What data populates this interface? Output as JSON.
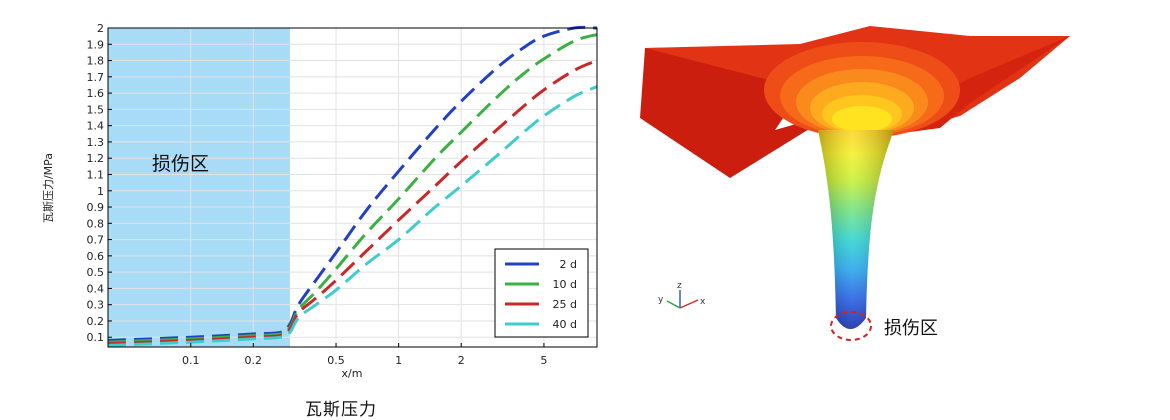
{
  "chart_data": {
    "type": "line",
    "title": "",
    "xlabel": "x/m",
    "ylabel": "瓦斯压力/MPa",
    "xscale": "log",
    "xlim": [
      0.04,
      9.0
    ],
    "ylim": [
      0.04,
      2.0
    ],
    "x_ticks": [
      0.1,
      0.2,
      0.5,
      1,
      2,
      5
    ],
    "x_tick_labels": [
      "0.1",
      "0.2",
      "0.5",
      "1",
      "2",
      "5"
    ],
    "y_ticks": [
      0.1,
      0.2,
      0.3,
      0.4,
      0.5,
      0.6,
      0.7,
      0.8,
      0.9,
      1,
      1.1,
      1.2,
      1.3,
      1.4,
      1.5,
      1.6,
      1.7,
      1.8,
      1.9,
      2
    ],
    "y_tick_labels": [
      "0.1",
      "0.2",
      "0.3",
      "0.4",
      "0.5",
      "0.6",
      "0.7",
      "0.8",
      "0.9",
      "1",
      "1.1",
      "1.2",
      "1.3",
      "1.4",
      "1.5",
      "1.6",
      "1.7",
      "1.8",
      "1.9",
      "2"
    ],
    "grid": true,
    "legend_position": "bottom-right",
    "damage_zone": {
      "x_from": 0.04,
      "x_to": 0.3,
      "label": "损伤区",
      "color": "#a8dcf6"
    },
    "series": [
      {
        "name": "2 d",
        "color": "#2140c4",
        "x": [
          0.04,
          0.1,
          0.2,
          0.27,
          0.3,
          0.33,
          0.4,
          0.5,
          0.7,
          1,
          1.5,
          2,
          3,
          4,
          5,
          7,
          9
        ],
        "y": [
          0.08,
          0.1,
          0.12,
          0.13,
          0.18,
          0.3,
          0.45,
          0.62,
          0.88,
          1.12,
          1.38,
          1.55,
          1.76,
          1.88,
          1.95,
          2.0,
          2.0
        ]
      },
      {
        "name": "10 d",
        "color": "#3cb043",
        "x": [
          0.04,
          0.1,
          0.2,
          0.27,
          0.3,
          0.33,
          0.4,
          0.5,
          0.7,
          1,
          1.5,
          2,
          3,
          4,
          5,
          7,
          9
        ],
        "y": [
          0.07,
          0.09,
          0.11,
          0.12,
          0.16,
          0.27,
          0.38,
          0.52,
          0.74,
          0.95,
          1.2,
          1.36,
          1.58,
          1.72,
          1.81,
          1.92,
          1.96
        ]
      },
      {
        "name": "25 d",
        "color": "#c72828",
        "x": [
          0.04,
          0.1,
          0.2,
          0.27,
          0.3,
          0.33,
          0.4,
          0.5,
          0.7,
          1,
          1.5,
          2,
          3,
          4,
          5,
          7,
          9
        ],
        "y": [
          0.06,
          0.08,
          0.1,
          0.11,
          0.15,
          0.25,
          0.34,
          0.45,
          0.63,
          0.82,
          1.03,
          1.18,
          1.38,
          1.52,
          1.62,
          1.74,
          1.8
        ]
      },
      {
        "name": "40 d",
        "color": "#3fcccc",
        "x": [
          0.04,
          0.1,
          0.2,
          0.27,
          0.3,
          0.33,
          0.4,
          0.5,
          0.7,
          1,
          1.5,
          2,
          3,
          4,
          5,
          7,
          9
        ],
        "y": [
          0.05,
          0.07,
          0.09,
          0.1,
          0.13,
          0.22,
          0.3,
          0.39,
          0.55,
          0.7,
          0.9,
          1.03,
          1.22,
          1.36,
          1.46,
          1.58,
          1.64
        ]
      }
    ]
  },
  "caption": "瓦斯压力",
  "model": {
    "damage_label": "损伤区",
    "axis_labels": {
      "z": "z",
      "y": "y",
      "x": "x"
    }
  }
}
